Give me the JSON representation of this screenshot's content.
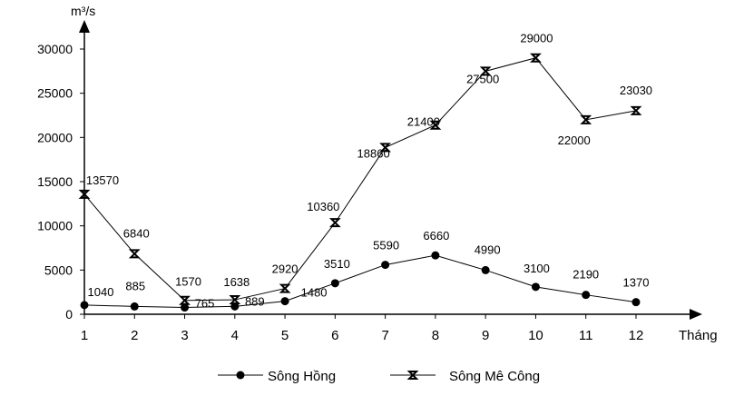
{
  "chart_data": {
    "type": "line",
    "title": "",
    "xlabel": "Tháng",
    "ylabel": "m³/s",
    "x": [
      1,
      2,
      3,
      4,
      5,
      6,
      7,
      8,
      9,
      10,
      11,
      12
    ],
    "ylim": [
      0,
      30000
    ],
    "yticks": [
      0,
      5000,
      10000,
      15000,
      20000,
      25000,
      30000
    ],
    "grid": false,
    "legend": "bottom",
    "series": [
      {
        "name": "Sông Hồng",
        "marker": "circle",
        "values": [
          1040,
          885,
          765,
          889,
          1480,
          3510,
          5590,
          6660,
          4990,
          3100,
          2190,
          1370
        ]
      },
      {
        "name": "Sông Mê Công",
        "marker": "bowtie",
        "values": [
          13570,
          6840,
          1570,
          1638,
          2920,
          10360,
          18860,
          21400,
          27500,
          29000,
          22000,
          23030
        ]
      }
    ]
  }
}
